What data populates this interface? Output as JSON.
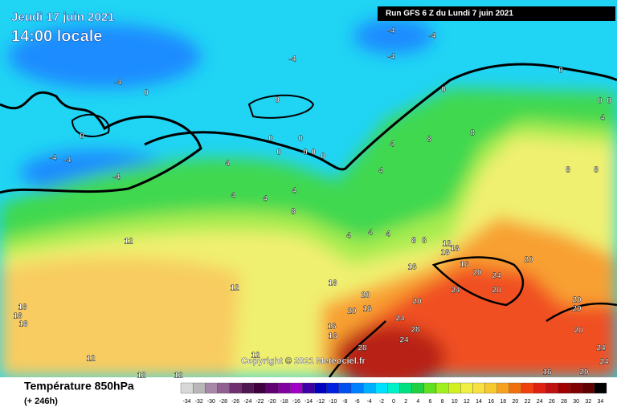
{
  "header": {
    "date": "Jeudi 17 juin 2021",
    "time": "14:00 locale",
    "run": "Run GFS 6 Z du Lundi 7 juin 2021",
    "copyright": "Copyright © 2021 Meteociel.fr"
  },
  "footer": {
    "title": "Température 850hPa",
    "subtitle": "(+ 246h)"
  },
  "scale": {
    "values": [
      -34,
      -32,
      -30,
      -28,
      -26,
      -24,
      -22,
      -20,
      -18,
      -16,
      -14,
      -12,
      -10,
      -8,
      -6,
      -4,
      -2,
      0,
      2,
      4,
      6,
      8,
      10,
      12,
      14,
      16,
      18,
      20,
      22,
      24,
      26,
      28,
      30,
      32,
      34
    ],
    "colors": [
      "#d8d8d8",
      "#b8b8b8",
      "#a888a8",
      "#906090",
      "#703070",
      "#501850",
      "#400040",
      "#600070",
      "#8000a0",
      "#a000c8",
      "#4000a8",
      "#0000c0",
      "#0020e0",
      "#0050f0",
      "#0080ff",
      "#00b0ff",
      "#00e0ff",
      "#00f0c8",
      "#00e080",
      "#20d040",
      "#60e020",
      "#a0f020",
      "#d0f020",
      "#f0f040",
      "#f8e040",
      "#f8c830",
      "#f8a020",
      "#f07010",
      "#f04010",
      "#e02010",
      "#c01010",
      "#a00000",
      "#800000",
      "#600000",
      "#000000"
    ]
  },
  "contour_labels": [
    -4,
    -4,
    -4,
    -4,
    -4,
    -4,
    -4,
    -4,
    0,
    0,
    0,
    0,
    0,
    0,
    0,
    0,
    0,
    0,
    0,
    0,
    0,
    4,
    4,
    4,
    4,
    4,
    4,
    4,
    4,
    4,
    4,
    8,
    8,
    8,
    8,
    8,
    8,
    8,
    12,
    12,
    12,
    12,
    12,
    12,
    12,
    16,
    16,
    16,
    16,
    16,
    16,
    16,
    16,
    16,
    16,
    16,
    16,
    20,
    20,
    20,
    20,
    20,
    20,
    20,
    20,
    20,
    20,
    24,
    24,
    24,
    24,
    24,
    24,
    28,
    28
  ]
}
